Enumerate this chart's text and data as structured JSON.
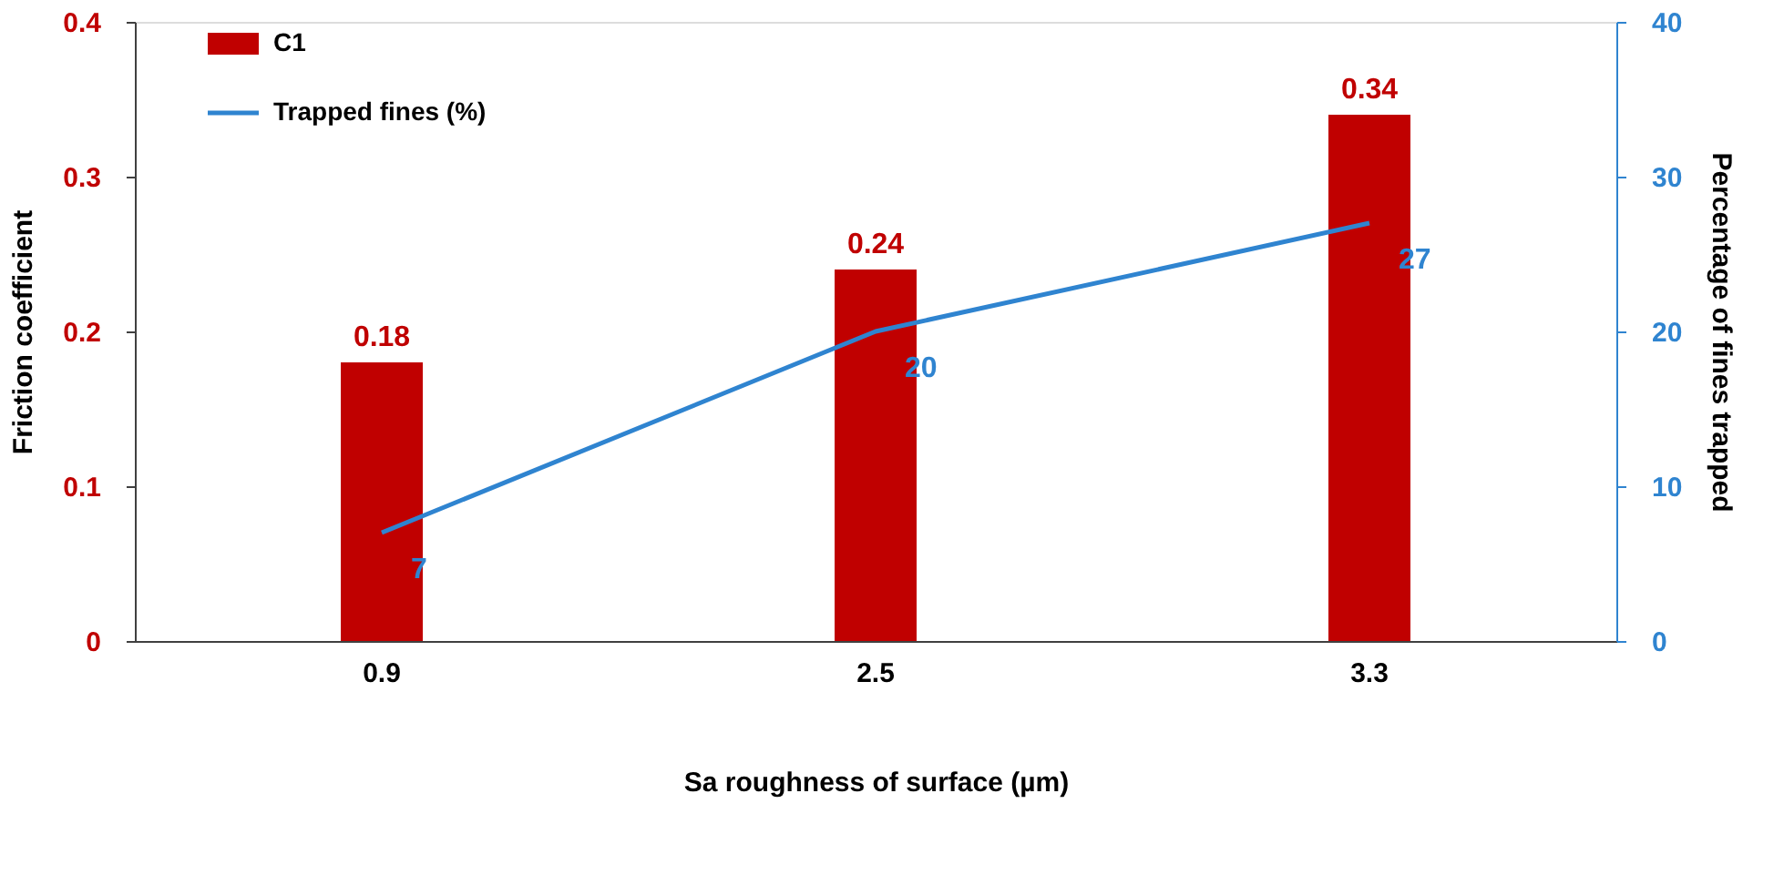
{
  "chart_data": {
    "type": "bar",
    "xlabel": "Sa roughness of surface (µm)",
    "ylabel": "Friction coefficient",
    "y2label": "Percentage of fines trapped",
    "categories": [
      "0.9",
      "2.5",
      "3.3"
    ],
    "series": [
      {
        "name": "C1",
        "color": "#c00000",
        "values": [
          0.18,
          0.24,
          0.34
        ]
      },
      {
        "name": "Trapped fines (%)",
        "type": "line",
        "axis": "y2",
        "color": "#2f84d0",
        "values": [
          7,
          20,
          27
        ]
      }
    ],
    "ylim": [
      0,
      0.4
    ],
    "yticks": [
      0,
      0.1,
      0.2,
      0.3,
      0.4
    ],
    "y2lim": [
      0,
      40
    ],
    "y2ticks": [
      0,
      10,
      20,
      30,
      40
    ],
    "data_labels": true,
    "legend": "top left"
  }
}
